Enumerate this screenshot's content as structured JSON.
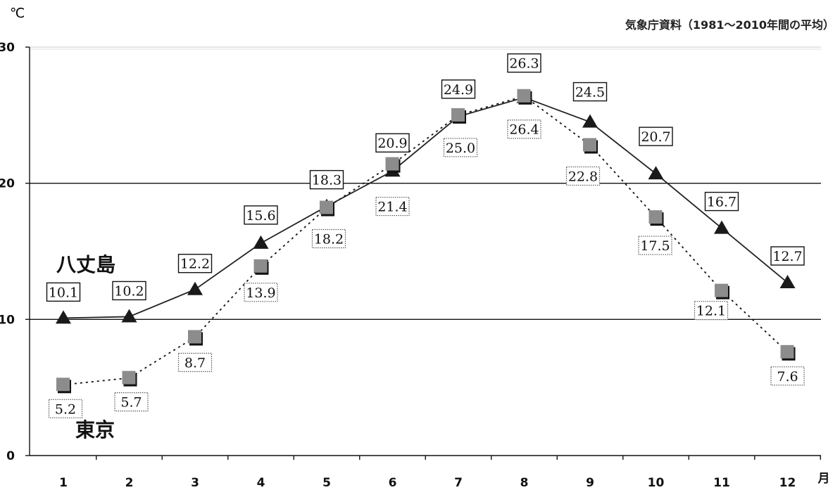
{
  "unit_label": "℃",
  "source_note": "気象庁資料（1981～2010年間の平均）",
  "chart_data": {
    "type": "line",
    "x": [
      1,
      2,
      3,
      4,
      5,
      6,
      7,
      8,
      9,
      10,
      11,
      12
    ],
    "xlabel": "月",
    "ylabel": "℃",
    "ylim": [
      0,
      30
    ],
    "yticks": [
      0,
      10,
      20,
      30
    ],
    "grid": true,
    "series": [
      {
        "name": "八丈島",
        "style": "solid",
        "marker": "triangle",
        "color": "#222222",
        "values": [
          10.1,
          10.2,
          12.2,
          15.6,
          18.3,
          20.9,
          24.9,
          26.3,
          24.5,
          20.7,
          16.7,
          12.7
        ],
        "label_box": "solid"
      },
      {
        "name": "東京",
        "style": "dotted",
        "marker": "square",
        "color": "#808080",
        "values": [
          5.2,
          5.7,
          8.7,
          13.9,
          18.2,
          21.4,
          25.0,
          26.4,
          22.8,
          17.5,
          12.1,
          7.6
        ],
        "label_box": "dotted"
      }
    ]
  }
}
